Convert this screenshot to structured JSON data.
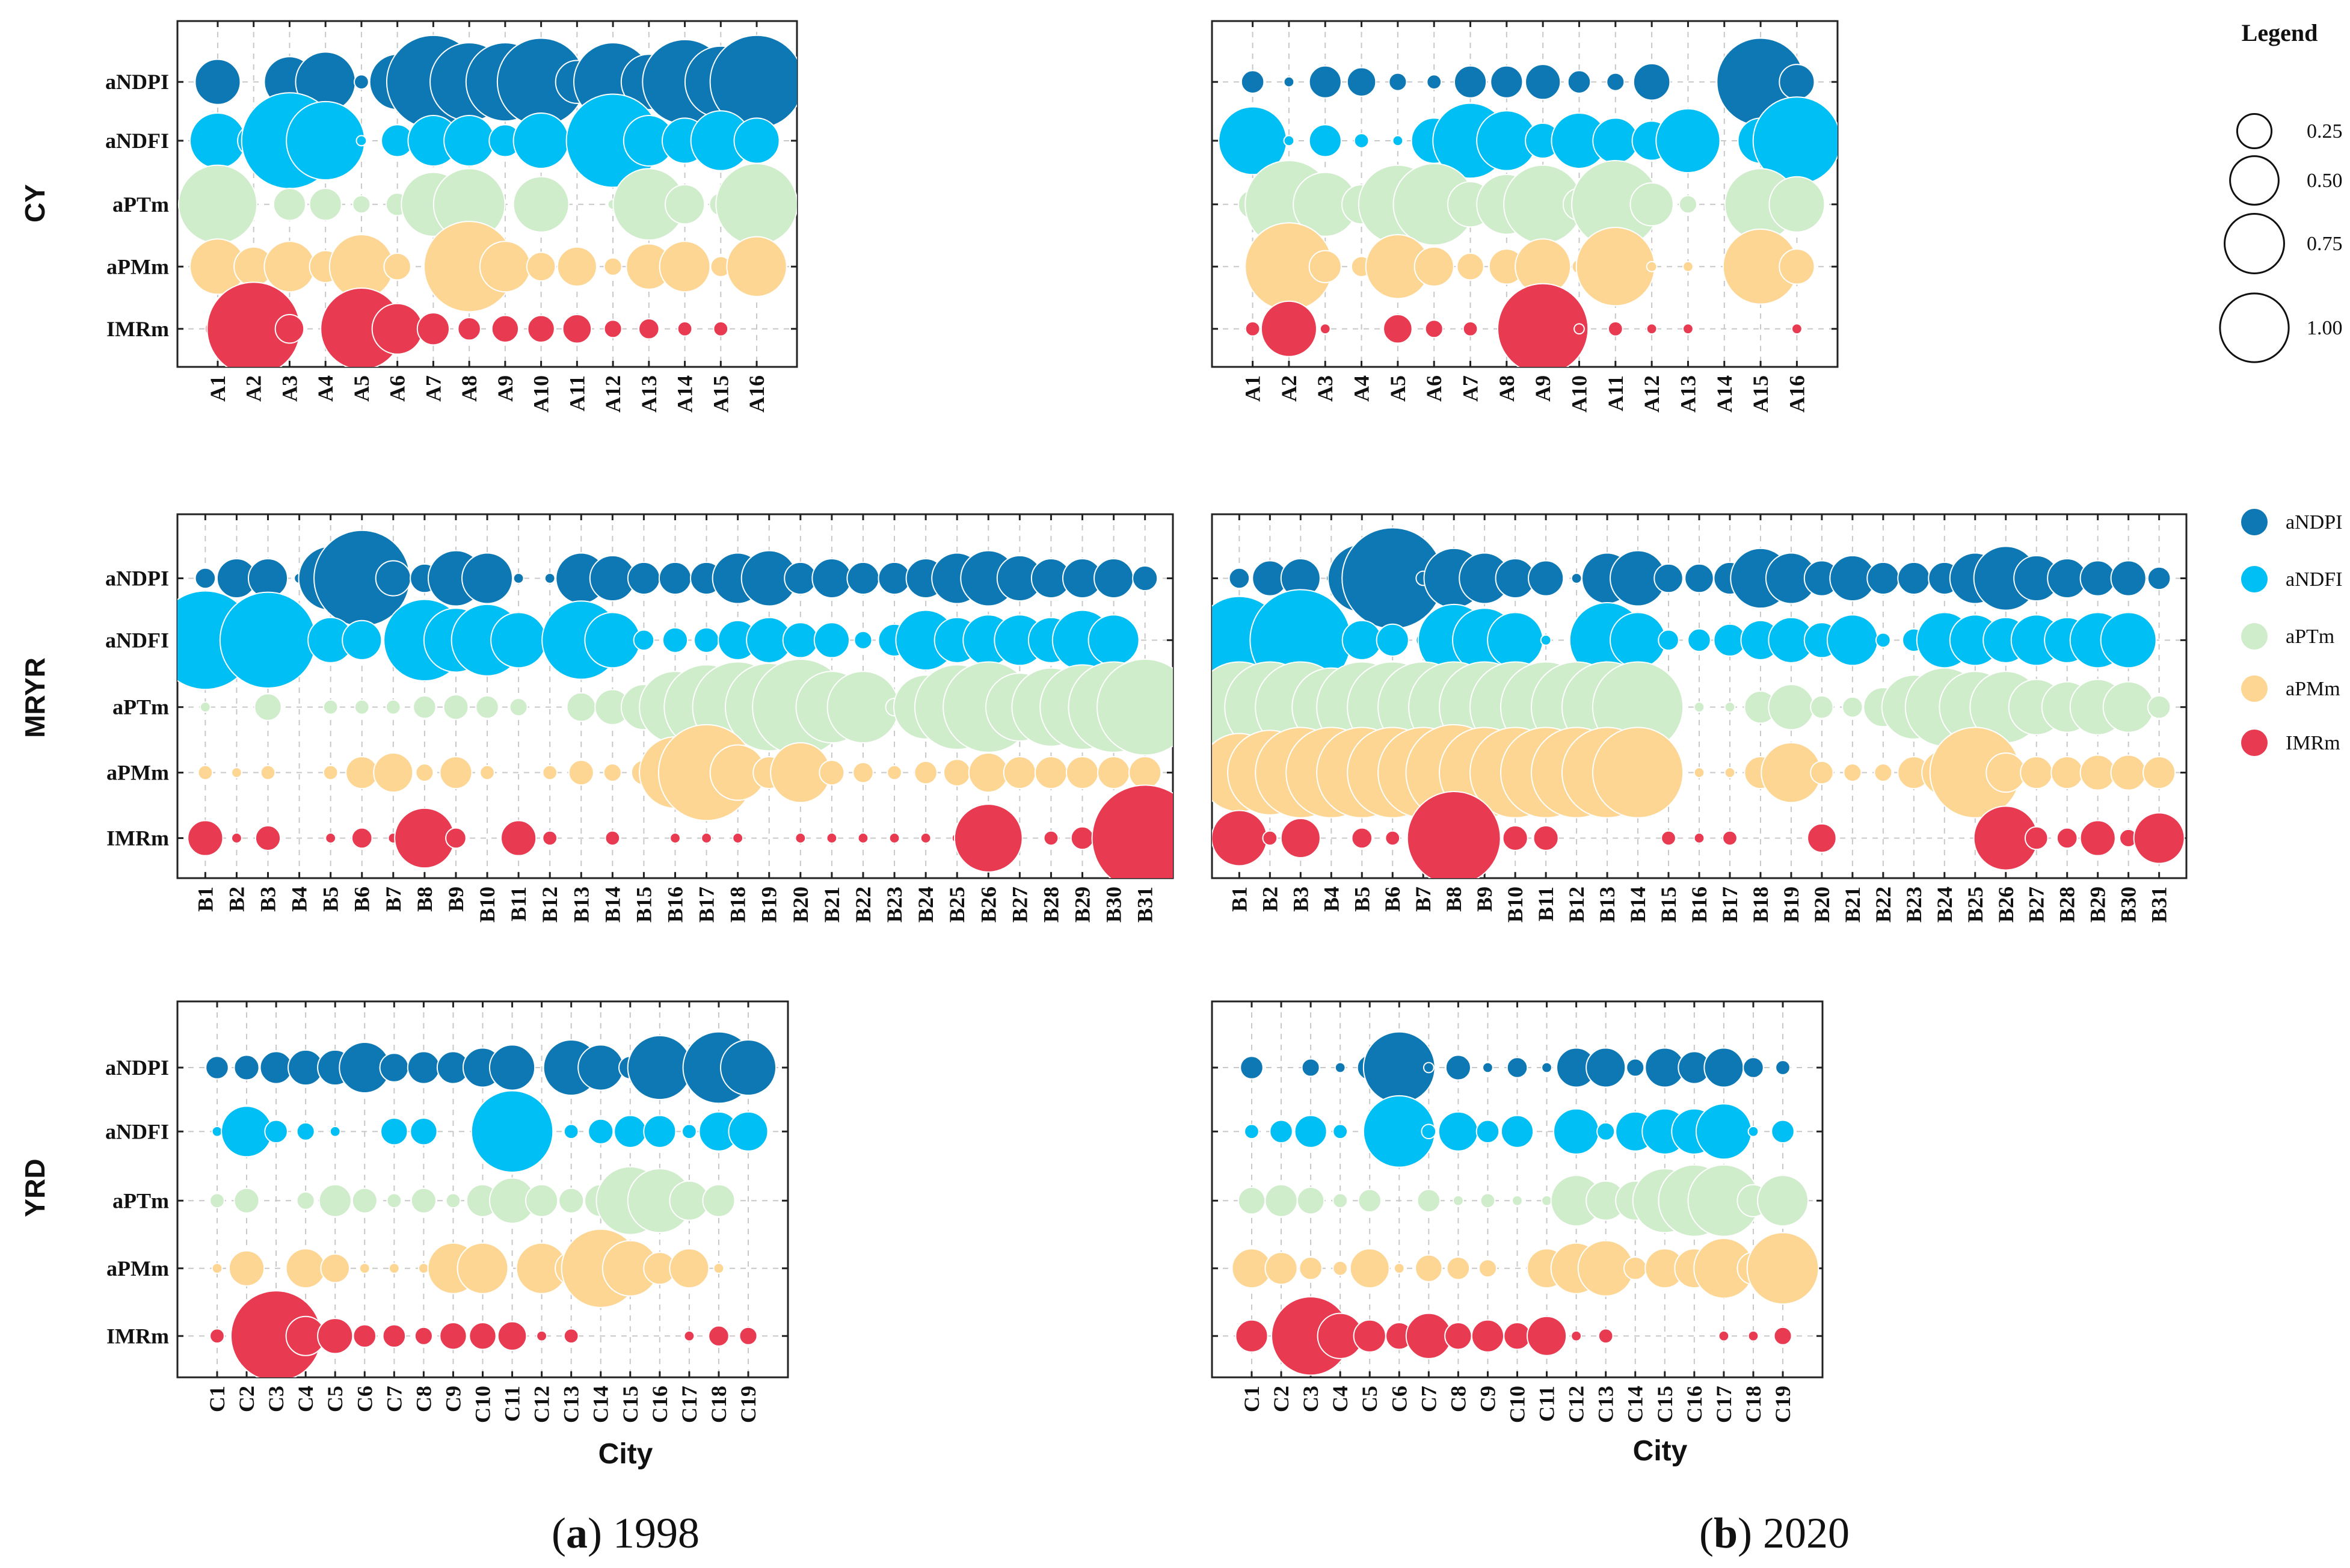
{
  "figure": {
    "captions": [
      {
        "letter": "a",
        "text": " 1998"
      },
      {
        "letter": "b",
        "text": " 2020"
      }
    ],
    "x_axis_title": "City",
    "legend": {
      "title": "Legend",
      "size_labels": [
        "0.25",
        "0.50",
        "0.75",
        "1.00"
      ],
      "size_values": [
        0.25,
        0.5,
        0.75,
        1.0
      ],
      "series_entries": [
        "aNDPI",
        "aNDFI",
        "aPTm",
        "aPMm",
        "IMRm"
      ]
    }
  },
  "colors": {
    "aNDPI": "#0d78b3",
    "aNDFI": "#00bff4",
    "aPTm": "#cfeccb",
    "aPMm": "#fdd693",
    "IMRm": "#e83a50"
  },
  "chart_data": [
    {
      "type": "scatter",
      "panel": "CY 1998",
      "region": "CY",
      "year": "1998",
      "title": "CY",
      "xlabel": "",
      "ylabel": "",
      "size_scale_max": 1.0,
      "categories": [
        "A1",
        "A2",
        "A3",
        "A4",
        "A5",
        "A6",
        "A7",
        "A8",
        "A9",
        "A10",
        "A11",
        "A12",
        "A13",
        "A14",
        "A15",
        "A16"
      ],
      "series": [
        {
          "name": "aNDPI",
          "values": [
            0.2,
            0,
            0.25,
            0.35,
            0.02,
            0.3,
            0.85,
            0.6,
            0.6,
            0.75,
            0.18,
            0.6,
            0.3,
            0.7,
            0.5,
            0.85
          ]
        },
        {
          "name": "aNDFI",
          "values": [
            0.3,
            0.1,
            0.9,
            0.6,
            0.01,
            0.1,
            0.25,
            0.25,
            0.1,
            0.3,
            0,
            0.85,
            0.25,
            0.2,
            0.35,
            0.2
          ]
        },
        {
          "name": "aPTm",
          "values": [
            0.6,
            0,
            0.1,
            0.1,
            0.03,
            0.05,
            0.4,
            0.5,
            0,
            0.3,
            0,
            0.01,
            0.5,
            0.15,
            0.05,
            0.65
          ]
        },
        {
          "name": "aPMm",
          "values": [
            0.3,
            0.15,
            0.25,
            0.1,
            0.4,
            0.07,
            0.04,
            0.8,
            0.25,
            0.08,
            0.15,
            0.03,
            0.2,
            0.25,
            0.04,
            0.35
          ]
        },
        {
          "name": "IMRm",
          "values": [
            0.06,
            0.85,
            0.08,
            0,
            0.65,
            0.25,
            0.1,
            0.05,
            0.07,
            0.07,
            0.08,
            0.03,
            0.04,
            0.02,
            0.02,
            0
          ]
        }
      ]
    },
    {
      "type": "scatter",
      "panel": "CY 2020",
      "region": "CY",
      "year": "2020",
      "title": "",
      "xlabel": "",
      "ylabel": "",
      "size_scale_max": 1.0,
      "categories": [
        "A1",
        "A2",
        "A3",
        "A4",
        "A5",
        "A6",
        "A7",
        "A8",
        "A9",
        "A10",
        "A11",
        "A12",
        "A13",
        "A14",
        "A15",
        "A16"
      ],
      "series": [
        {
          "name": "aNDPI",
          "values": [
            0.05,
            0.01,
            0.1,
            0.08,
            0.03,
            0.02,
            0.1,
            0.1,
            0.12,
            0.05,
            0.03,
            0.13,
            0,
            0,
            0.75,
            0.12
          ]
        },
        {
          "name": "aNDFI",
          "values": [
            0.45,
            0.01,
            0.1,
            0.02,
            0.01,
            0.2,
            0.55,
            0.35,
            0.12,
            0.3,
            0.2,
            0.15,
            0.4,
            0,
            0.2,
            0.75
          ]
        },
        {
          "name": "aPTm",
          "values": [
            0.08,
            0.75,
            0.4,
            0.15,
            0.6,
            0.65,
            0.2,
            0.35,
            0.6,
            0.1,
            0.75,
            0.18,
            0.03,
            0,
            0.5,
            0.3
          ]
        },
        {
          "name": "aPMm",
          "values": [
            0,
            0.75,
            0.1,
            0.04,
            0.4,
            0.15,
            0.07,
            0.12,
            0.3,
            0.02,
            0.6,
            0.01,
            0.01,
            0,
            0.55,
            0.12
          ]
        },
        {
          "name": "IMRm",
          "values": [
            0.02,
            0.3,
            0.01,
            0,
            0.08,
            0.03,
            0.02,
            0.01,
            0.8,
            0.01,
            0.02,
            0.01,
            0.01,
            0,
            0,
            0.01
          ]
        }
      ]
    },
    {
      "type": "scatter",
      "panel": "MRYR 1998",
      "region": "MRYR",
      "year": "1998",
      "title": "MRYR",
      "xlabel": "",
      "ylabel": "",
      "size_scale_max": 1.0,
      "categories": [
        "B1",
        "B2",
        "B3",
        "B4",
        "B5",
        "B6",
        "B7",
        "B8",
        "B9",
        "B10",
        "B11",
        "B12",
        "B13",
        "B14",
        "B15",
        "B16",
        "B17",
        "B18",
        "B19",
        "B20",
        "B21",
        "B22",
        "B23",
        "B24",
        "B25",
        "B26",
        "B27",
        "B28",
        "B29",
        "B30",
        "B31"
      ],
      "series": [
        {
          "name": "aNDPI",
          "values": [
            0.04,
            0.15,
            0.15,
            0.01,
            0.4,
            0.9,
            0.12,
            0.08,
            0.3,
            0.25,
            0.01,
            0.01,
            0.25,
            0.2,
            0.1,
            0.1,
            0.1,
            0.25,
            0.3,
            0.1,
            0.15,
            0.1,
            0.1,
            0.15,
            0.25,
            0.3,
            0.2,
            0.15,
            0.15,
            0.15,
            0.06
          ]
        },
        {
          "name": "aNDFI",
          "values": [
            0.95,
            0.01,
            0.9,
            0,
            0.2,
            0.15,
            0.03,
            0.65,
            0.4,
            0.5,
            0.3,
            0.02,
            0.6,
            0.3,
            0.04,
            0.06,
            0.06,
            0.15,
            0.2,
            0.12,
            0.12,
            0.03,
            0.1,
            0.35,
            0.2,
            0.25,
            0.25,
            0.2,
            0.35,
            0.25,
            0
          ]
        },
        {
          "name": "aPTm",
          "values": [
            0.01,
            0,
            0.07,
            0,
            0.02,
            0.02,
            0.02,
            0.05,
            0.06,
            0.05,
            0.03,
            0,
            0.08,
            0.12,
            0.2,
            0.5,
            0.7,
            0.8,
            0.75,
            0.9,
            0.5,
            0.5,
            0.03,
            0.4,
            0.7,
            0.8,
            0.45,
            0.6,
            0.7,
            0.8,
            0.9
          ]
        },
        {
          "name": "aPMm",
          "values": [
            0.02,
            0.01,
            0.02,
            0,
            0.02,
            0.1,
            0.15,
            0.03,
            0.1,
            0.02,
            0,
            0.02,
            0.06,
            0.03,
            0.06,
            0.5,
            0.9,
            0.3,
            0.1,
            0.35,
            0.06,
            0.04,
            0.02,
            0.05,
            0.07,
            0.15,
            0.1,
            0.1,
            0.1,
            0.1,
            0.1
          ]
        },
        {
          "name": "IMRm",
          "values": [
            0.12,
            0.01,
            0.06,
            0,
            0.01,
            0.04,
            0.01,
            0.35,
            0.04,
            0,
            0.12,
            0.02,
            0,
            0.02,
            0,
            0.01,
            0.01,
            0.01,
            0,
            0.01,
            0.01,
            0.01,
            0.01,
            0.01,
            0.01,
            0.45,
            0,
            0.02,
            0.05,
            0.02,
            1.1
          ]
        }
      ]
    },
    {
      "type": "scatter",
      "panel": "MRYR 2020",
      "region": "MRYR",
      "year": "2020",
      "title": "",
      "xlabel": "",
      "ylabel": "",
      "size_scale_max": 1.0,
      "categories": [
        "B1",
        "B2",
        "B3",
        "B4",
        "B5",
        "B6",
        "B7",
        "B8",
        "B9",
        "B10",
        "B11",
        "B12",
        "B13",
        "B14",
        "B15",
        "B16",
        "B17",
        "B18",
        "B19",
        "B20",
        "B21",
        "B22",
        "B23",
        "B24",
        "B25",
        "B26",
        "B27",
        "B28",
        "B29",
        "B30",
        "B31"
      ],
      "series": [
        {
          "name": "aNDPI",
          "values": [
            0.04,
            0.12,
            0.15,
            0.01,
            0.45,
            1.0,
            0.02,
            0.35,
            0.25,
            0.15,
            0.12,
            0.01,
            0.25,
            0.3,
            0.08,
            0.08,
            0.1,
            0.35,
            0.25,
            0.12,
            0.2,
            0.1,
            0.1,
            0.1,
            0.25,
            0.4,
            0.2,
            0.15,
            0.12,
            0.12,
            0.05
          ]
        },
        {
          "name": "aNDFI",
          "values": [
            0.75,
            0.15,
            1.0,
            0,
            0.15,
            0.1,
            0.02,
            0.5,
            0.4,
            0.3,
            0.01,
            0,
            0.55,
            0.3,
            0.04,
            0.05,
            0.1,
            0.15,
            0.2,
            0.12,
            0.25,
            0.02,
            0.05,
            0.3,
            0.25,
            0.2,
            0.25,
            0.2,
            0.3,
            0.3,
            0
          ]
        },
        {
          "name": "aPTm",
          "values": [
            0.8,
            0.8,
            0.8,
            0.6,
            0.8,
            0.8,
            0.8,
            0.8,
            0.8,
            0.8,
            0.8,
            0.8,
            0.8,
            0.8,
            0,
            0.01,
            0.01,
            0.1,
            0.2,
            0.05,
            0.04,
            0.15,
            0.4,
            0.6,
            0.5,
            0.5,
            0.3,
            0.25,
            0.3,
            0.25,
            0.05
          ]
        },
        {
          "name": "aPMm",
          "values": [
            0.6,
            0.7,
            0.8,
            0.8,
            0.8,
            0.8,
            0.8,
            0.9,
            0.8,
            0.8,
            0.8,
            0.8,
            0.8,
            0.8,
            0,
            0.01,
            0.01,
            0.1,
            0.35,
            0.05,
            0.03,
            0.03,
            0.1,
            0.2,
            0.8,
            0.15,
            0.1,
            0.1,
            0.12,
            0.12,
            0.1
          ]
        },
        {
          "name": "IMRm",
          "values": [
            0.3,
            0.02,
            0.15,
            0,
            0.04,
            0.02,
            0,
            0.85,
            0,
            0.06,
            0.06,
            0,
            0,
            0,
            0.02,
            0.01,
            0.02,
            0,
            0,
            0.08,
            0,
            0,
            0,
            0,
            0,
            0.4,
            0.05,
            0.04,
            0.12,
            0.03,
            0.25
          ]
        }
      ]
    },
    {
      "type": "scatter",
      "panel": "YRD 1998",
      "region": "YRD",
      "year": "1998",
      "title": "YRD",
      "xlabel": "City",
      "ylabel": "",
      "size_scale_max": 1.0,
      "categories": [
        "C1",
        "C2",
        "C3",
        "C4",
        "C5",
        "C6",
        "C7",
        "C8",
        "C9",
        "C10",
        "C11",
        "C12",
        "C13",
        "C14",
        "C15",
        "C16",
        "C17",
        "C18",
        "C19"
      ],
      "series": [
        {
          "name": "aNDPI",
          "values": [
            0.05,
            0.06,
            0.1,
            0.12,
            0.12,
            0.25,
            0.08,
            0.1,
            0.1,
            0.15,
            0.2,
            0,
            0.3,
            0.2,
            0.05,
            0.4,
            0.01,
            0.5,
            0.3
          ]
        },
        {
          "name": "aNDFI",
          "values": [
            0.01,
            0.25,
            0.05,
            0.03,
            0.01,
            0,
            0.07,
            0.07,
            0,
            0.05,
            0.65,
            0,
            0.02,
            0.06,
            0.1,
            0.1,
            0.02,
            0.15,
            0.15
          ]
        },
        {
          "name": "aPTm",
          "values": [
            0.02,
            0.06,
            0,
            0.03,
            0.1,
            0.06,
            0.02,
            0.06,
            0.02,
            0.1,
            0.2,
            0.1,
            0.06,
            0.1,
            0.45,
            0.4,
            0.15,
            0.1,
            0
          ]
        },
        {
          "name": "aPMm",
          "values": [
            0.01,
            0.12,
            0,
            0.15,
            0.08,
            0.01,
            0.01,
            0.01,
            0.25,
            0.25,
            0,
            0.25,
            0.1,
            0.6,
            0.3,
            0.1,
            0.15,
            0.01,
            0
          ]
        },
        {
          "name": "IMRm",
          "values": [
            0.02,
            0,
            0.8,
            0.15,
            0.12,
            0.05,
            0.05,
            0.03,
            0.07,
            0.07,
            0.08,
            0.01,
            0.02,
            0,
            0,
            0,
            0.01,
            0.04,
            0.03
          ]
        }
      ]
    },
    {
      "type": "scatter",
      "panel": "YRD 2020",
      "region": "YRD",
      "year": "2020",
      "title": "",
      "xlabel": "City",
      "ylabel": "",
      "size_scale_max": 1.0,
      "categories": [
        "C1",
        "C2",
        "C3",
        "C4",
        "C5",
        "C6",
        "C7",
        "C8",
        "C9",
        "C10",
        "C11",
        "C12",
        "C13",
        "C14",
        "C15",
        "C16",
        "C17",
        "C18",
        "C19"
      ],
      "series": [
        {
          "name": "aNDPI",
          "values": [
            0.05,
            0,
            0.03,
            0.01,
            0.06,
            0.5,
            0.01,
            0.06,
            0.01,
            0.04,
            0.01,
            0.15,
            0.15,
            0.03,
            0.15,
            0.1,
            0.15,
            0.04,
            0.02
          ]
        },
        {
          "name": "aNDFI",
          "values": [
            0.02,
            0.05,
            0.1,
            0.02,
            0.02,
            0.5,
            0.02,
            0.15,
            0.05,
            0.1,
            0,
            0.2,
            0.03,
            0.15,
            0.2,
            0.2,
            0.3,
            0.01,
            0.05
          ]
        },
        {
          "name": "aPTm",
          "values": [
            0.07,
            0.1,
            0.07,
            0.02,
            0.05,
            0,
            0.05,
            0.01,
            0.02,
            0.01,
            0.01,
            0.25,
            0.15,
            0.15,
            0.4,
            0.5,
            0.5,
            0.1,
            0.25
          ]
        },
        {
          "name": "aPMm",
          "values": [
            0.15,
            0.1,
            0.05,
            0.02,
            0.15,
            0.01,
            0.07,
            0.05,
            0.03,
            0,
            0.15,
            0.25,
            0.3,
            0.05,
            0.15,
            0.15,
            0.35,
            0.1,
            0.5
          ]
        },
        {
          "name": "IMRm",
          "values": [
            0.1,
            0.02,
            0.6,
            0.2,
            0.1,
            0.07,
            0.2,
            0.07,
            0.1,
            0.07,
            0.15,
            0.01,
            0.02,
            0,
            0,
            0,
            0.01,
            0.01,
            0.03
          ]
        }
      ]
    }
  ]
}
